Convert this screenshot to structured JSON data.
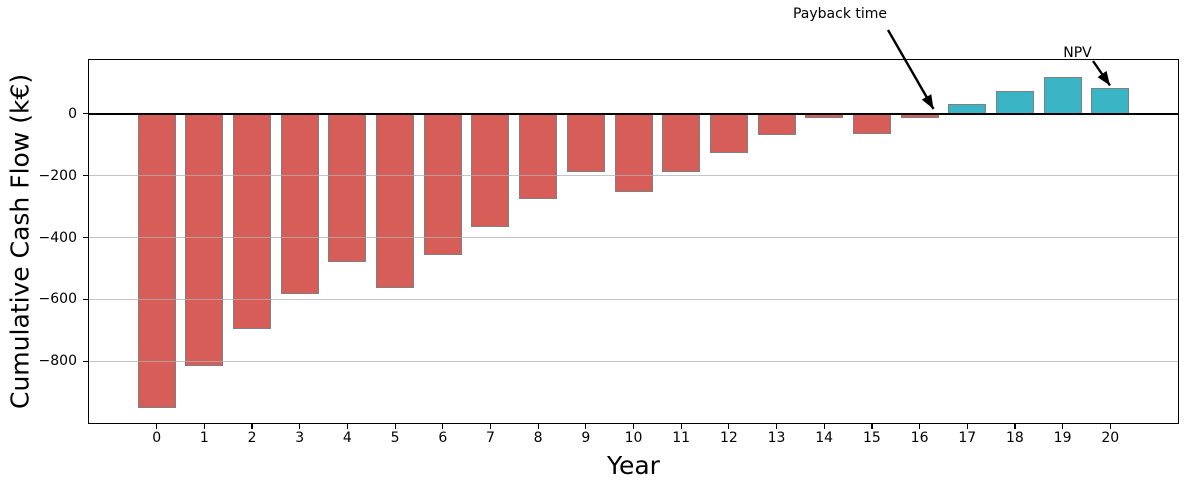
{
  "chart_data": {
    "type": "bar",
    "title": "",
    "xlabel": "Year",
    "ylabel": "Cumulative Cash Flow (k€)",
    "series_name": "Cumulative cash flow (k€)",
    "categories": [
      "0",
      "1",
      "2",
      "3",
      "4",
      "5",
      "6",
      "7",
      "8",
      "9",
      "10",
      "11",
      "12",
      "13",
      "14",
      "15",
      "16",
      "17",
      "18",
      "19",
      "20"
    ],
    "values": [
      -950,
      -816,
      -697,
      -583,
      -478,
      -563,
      -457,
      -366,
      -275,
      -188,
      -254,
      -188,
      -128,
      -70,
      -15,
      -67,
      -15,
      31,
      75,
      120,
      85
    ],
    "ylim": [
      -1003,
      177
    ],
    "yticks": [
      0,
      -200,
      -400,
      -600,
      -800
    ],
    "ytick_labels": [
      "0",
      "−200",
      "−400",
      "−600",
      "−800"
    ],
    "grid": "horizontal gridlines drawn above bars",
    "legend_position": "none",
    "zero_line": true,
    "colors": {
      "negative_bar": "#d65d58",
      "positive_bar": "#3ab5c5",
      "bar_edge": "#7f7f7f",
      "gridline": "#b0b0b0",
      "axis": "#000000",
      "annotation": "#000000"
    },
    "annotations": [
      {
        "text": "Payback time",
        "points_to": "zero crossing between year 16 and year 17"
      },
      {
        "text": "NPV",
        "points_to": "top of year 20 bar"
      }
    ]
  }
}
